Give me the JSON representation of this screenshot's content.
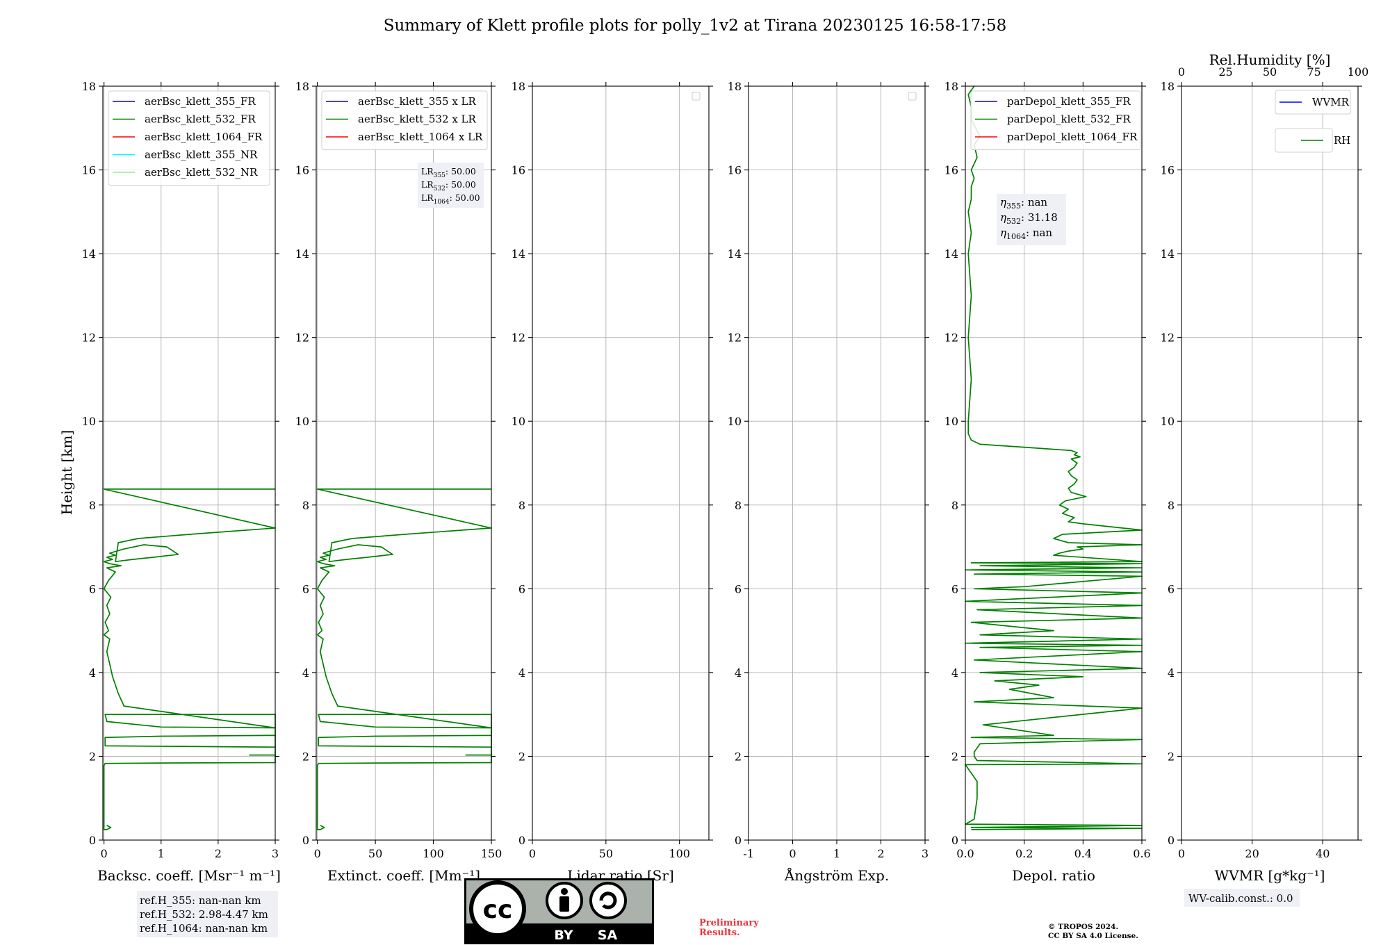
{
  "title": "Summary of Klett profile plots for polly_1v2 at Tirana 20230125 16:58-17:58",
  "ylabel": "Height [km]",
  "colors": {
    "blue": "#0000ff",
    "green": "#008000",
    "red": "#ff0000",
    "cyan": "#00ffff",
    "lightgreen": "#90ee90",
    "prelim": "#e8343a"
  },
  "chart_data": [
    {
      "type": "line",
      "xlabel": "Backsc. coeff. [Msr⁻¹ m⁻¹]",
      "xlim": [
        -0.02,
        3
      ],
      "ylim": [
        0,
        18
      ],
      "xticks": [
        0,
        1,
        2,
        3
      ],
      "yticks": [
        0,
        2,
        4,
        6,
        8,
        10,
        12,
        14,
        16,
        18
      ],
      "grid": true,
      "legend_position": "top-left",
      "legend": [
        {
          "name": "aerBsc_klett_355_FR",
          "color": "blue"
        },
        {
          "name": "aerBsc_klett_532_FR",
          "color": "green"
        },
        {
          "name": "aerBsc_klett_1064_FR",
          "color": "red"
        },
        {
          "name": "aerBsc_klett_355_NR",
          "color": "cyan"
        },
        {
          "name": "aerBsc_klett_532_NR",
          "color": "lightgreen"
        }
      ],
      "series": [
        {
          "name": "aerBsc_klett_532_FR",
          "color": "green",
          "x": [
            0.05,
            0.12,
            0.05,
            0.0,
            0.0,
            0.02,
            1.0,
            3.0,
            3.0,
            0.02,
            0.02,
            1.0,
            3.0,
            3.0,
            2.55,
            2.55,
            3.0,
            3.0,
            1.0,
            0.05,
            0.02,
            3.0,
            3.0,
            0.35,
            0.25,
            0.15,
            0.1,
            0.05,
            0.1,
            0.0,
            0.08,
            0.02,
            0.1,
            0.05,
            0.12,
            0.0,
            0.08,
            0.2,
            0.05,
            0.3,
            0.1,
            0.0,
            0.15,
            0.05,
            0.2,
            0.1,
            0.35,
            0.7,
            1.1,
            1.3,
            0.85,
            0.5,
            0.2,
            0.25,
            0.6,
            1.5,
            3.0,
            3.0,
            0.0,
            0.0,
            3.0,
            3.0
          ],
          "y": [
            0.35,
            0.3,
            0.25,
            0.25,
            1.78,
            1.83,
            1.84,
            1.85,
            2.22,
            2.25,
            2.45,
            2.48,
            2.5,
            2.03,
            2.03,
            2.03,
            2.03,
            2.68,
            2.7,
            2.83,
            3.0,
            3.0,
            2.68,
            3.2,
            3.5,
            3.9,
            4.2,
            4.5,
            4.8,
            4.9,
            5.0,
            5.2,
            5.4,
            5.6,
            5.8,
            6.0,
            6.2,
            6.4,
            6.5,
            6.55,
            6.6,
            6.65,
            6.7,
            6.75,
            6.8,
            6.85,
            6.95,
            7.05,
            7.0,
            6.82,
            6.75,
            6.7,
            6.65,
            7.1,
            7.2,
            7.3,
            7.45,
            7.45,
            8.38,
            8.38,
            8.38,
            8.38
          ]
        }
      ]
    },
    {
      "type": "line",
      "xlabel": "Extinct. coeff. [Mm⁻¹]",
      "xlim": [
        -1,
        150
      ],
      "ylim": [
        0,
        18
      ],
      "xticks": [
        0,
        50,
        100,
        150
      ],
      "yticks": [
        0,
        2,
        4,
        6,
        8,
        10,
        12,
        14,
        16,
        18
      ],
      "grid": true,
      "legend_position": "top-left",
      "legend": [
        {
          "name": "aerBsc_klett_355 x LR",
          "color": "blue"
        },
        {
          "name": "aerBsc_klett_532 x LR",
          "color": "green"
        },
        {
          "name": "aerBsc_klett_1064 x LR",
          "color": "red"
        }
      ],
      "annotation_lines": [
        "LR355: 50.00",
        "LR532: 50.00",
        "LR1064: 50.00"
      ],
      "series": [
        {
          "name": "aerBsc_klett_532 x LR",
          "color": "green",
          "x": [
            2.5,
            6,
            2.5,
            0,
            0,
            1,
            50,
            150,
            150,
            1,
            1,
            50,
            150,
            150,
            128,
            128,
            150,
            150,
            50,
            2.5,
            1,
            150,
            150,
            17.5,
            12.5,
            7.5,
            5,
            2.5,
            5,
            0,
            4,
            1,
            5,
            2.5,
            6,
            0,
            4,
            10,
            2.5,
            15,
            5,
            0,
            7.5,
            2.5,
            10,
            5,
            17.5,
            35,
            55,
            65,
            42.5,
            25,
            10,
            12.5,
            30,
            75,
            150,
            150,
            0,
            0,
            150,
            150
          ],
          "y": [
            0.35,
            0.3,
            0.25,
            0.25,
            1.78,
            1.83,
            1.84,
            1.85,
            2.22,
            2.25,
            2.45,
            2.48,
            2.5,
            2.03,
            2.03,
            2.03,
            2.03,
            2.68,
            2.7,
            2.83,
            3.0,
            3.0,
            2.68,
            3.2,
            3.5,
            3.9,
            4.2,
            4.5,
            4.8,
            4.9,
            5.0,
            5.2,
            5.4,
            5.6,
            5.8,
            6.0,
            6.2,
            6.4,
            6.5,
            6.55,
            6.6,
            6.65,
            6.7,
            6.75,
            6.8,
            6.85,
            6.95,
            7.05,
            7.0,
            6.82,
            6.75,
            6.7,
            6.65,
            7.1,
            7.2,
            7.3,
            7.45,
            7.45,
            8.38,
            8.38,
            8.38,
            8.38
          ]
        }
      ]
    },
    {
      "type": "line",
      "xlabel": "Lidar ratio [Sr]",
      "xlim": [
        0,
        120
      ],
      "ylim": [
        0,
        18
      ],
      "xticks": [
        0,
        50,
        100
      ],
      "yticks": [
        0,
        2,
        4,
        6,
        8,
        10,
        12,
        14,
        16,
        18
      ],
      "grid": true,
      "legend_position": "top-right",
      "legend": [],
      "series": []
    },
    {
      "type": "line",
      "xlabel": "Ångström Exp.",
      "xlim": [
        -1,
        3
      ],
      "ylim": [
        0,
        18
      ],
      "xticks": [
        -1,
        0,
        1,
        2,
        3
      ],
      "yticks": [
        0,
        2,
        4,
        6,
        8,
        10,
        12,
        14,
        16,
        18
      ],
      "grid": true,
      "legend_position": "top-right",
      "legend": [],
      "series": []
    },
    {
      "type": "line",
      "xlabel": "Depol. ratio",
      "xlim": [
        0,
        0.6
      ],
      "ylim": [
        0,
        18
      ],
      "xticks": [
        0.0,
        0.2,
        0.4,
        0.6
      ],
      "xtick_labels": [
        "0.0",
        "0.2",
        "0.4",
        "0.6"
      ],
      "yticks": [
        0,
        2,
        4,
        6,
        8,
        10,
        12,
        14,
        16,
        18
      ],
      "grid": true,
      "legend_position": "top-left",
      "legend": [
        {
          "name": "parDepol_klett_355_FR",
          "color": "blue"
        },
        {
          "name": "parDepol_klett_532_FR",
          "color": "green"
        },
        {
          "name": "parDepol_klett_1064_FR",
          "color": "red"
        }
      ],
      "annotation_lines": [
        "η355: nan",
        "η532: 31.18",
        "η1064: nan"
      ],
      "series": [
        {
          "name": "parDepol_klett_532_FR",
          "color": "green",
          "x": [
            0.02,
            0.6,
            0.02,
            0.6,
            0.0,
            0.03,
            0.04,
            0.04,
            0.03,
            0.0,
            0.6,
            0.04,
            0.03,
            0.03,
            0.05,
            0.6,
            0.02,
            0.3,
            0.06,
            0.6,
            0.03,
            0.3,
            0.15,
            0.25,
            0.1,
            0.4,
            0.05,
            0.6,
            0.03,
            0.6,
            0.05,
            0.6,
            0.0,
            0.6,
            0.05,
            0.3,
            0.02,
            0.6,
            0.04,
            0.6,
            0.0,
            0.6,
            0.03,
            0.2,
            0.6,
            0.03,
            0.6,
            0.0,
            0.6,
            0.05,
            0.6,
            0.02,
            0.6,
            0.3,
            0.32,
            0.35,
            0.4,
            0.38,
            0.6,
            0.35,
            0.3,
            0.33,
            0.6,
            0.4,
            0.35,
            0.37,
            0.33,
            0.35,
            0.32,
            0.34,
            0.41,
            0.36,
            0.35,
            0.37,
            0.38,
            0.36,
            0.35,
            0.37,
            0.38,
            0.36,
            0.39,
            0.37,
            0.38,
            0.36,
            0.2,
            0.05,
            0.02,
            0.01,
            0.01,
            0.02,
            0.01,
            0.02,
            0.01,
            0.02,
            0.01,
            0.02,
            0.02,
            0.03,
            0.02,
            0.04,
            0.03,
            0.05,
            0.02,
            0.02,
            0.01,
            0.03
          ],
          "y": [
            0.25,
            0.28,
            0.3,
            0.35,
            0.38,
            0.5,
            1.0,
            1.4,
            1.5,
            1.8,
            1.82,
            1.9,
            2.0,
            2.1,
            2.3,
            2.4,
            2.45,
            2.5,
            2.75,
            3.15,
            3.3,
            3.4,
            3.6,
            3.7,
            3.8,
            3.9,
            4.0,
            4.1,
            4.3,
            4.5,
            4.6,
            4.65,
            4.7,
            4.8,
            4.9,
            5.0,
            5.2,
            5.3,
            5.5,
            5.6,
            5.7,
            5.9,
            6.0,
            6.05,
            6.3,
            6.35,
            6.4,
            6.45,
            6.5,
            6.55,
            6.6,
            6.62,
            6.65,
            6.8,
            6.85,
            6.9,
            6.95,
            7.0,
            7.05,
            7.1,
            7.2,
            7.3,
            7.4,
            7.55,
            7.6,
            7.7,
            7.8,
            7.9,
            8.0,
            8.1,
            8.2,
            8.3,
            8.4,
            8.5,
            8.6,
            8.7,
            8.8,
            8.9,
            9.0,
            9.1,
            9.15,
            9.2,
            9.25,
            9.3,
            9.38,
            9.45,
            9.55,
            9.7,
            10.0,
            11.0,
            12.0,
            13.0,
            14.0,
            14.5,
            15.0,
            15.3,
            15.6,
            15.8,
            16.0,
            16.3,
            16.6,
            16.8,
            17.2,
            17.5,
            17.8,
            18.0
          ]
        }
      ]
    },
    {
      "type": "line",
      "xlabel": "WVMR [g*kg⁻¹]",
      "x2label": "Rel.Humidity [%]",
      "xlim": [
        0,
        50
      ],
      "x2lim": [
        0,
        100
      ],
      "ylim": [
        0,
        18
      ],
      "xticks": [
        0,
        20,
        40
      ],
      "x2ticks": [
        0,
        25,
        50,
        75,
        100
      ],
      "yticks": [
        0,
        2,
        4,
        6,
        8,
        10,
        12,
        14,
        16,
        18
      ],
      "grid": true,
      "legend_position": "top-right",
      "legend": [
        {
          "name": "WVMR",
          "color": "blue"
        },
        {
          "name": "RH",
          "color": "green"
        }
      ],
      "series": []
    }
  ],
  "notes": {
    "refh": [
      "ref.H_355: nan-nan km",
      "ref.H_532: 2.98-4.47 km",
      "ref.H_1064: nan-nan km"
    ],
    "wv_calib": "WV-calib.const.: 0.0",
    "preliminary": [
      "Preliminary",
      "Results."
    ],
    "copyright": [
      "© TROPOS 2024.",
      "CC BY SA 4.0 License."
    ]
  },
  "license_badge": {
    "cc": "cc",
    "by": "BY",
    "sa": "SA"
  }
}
